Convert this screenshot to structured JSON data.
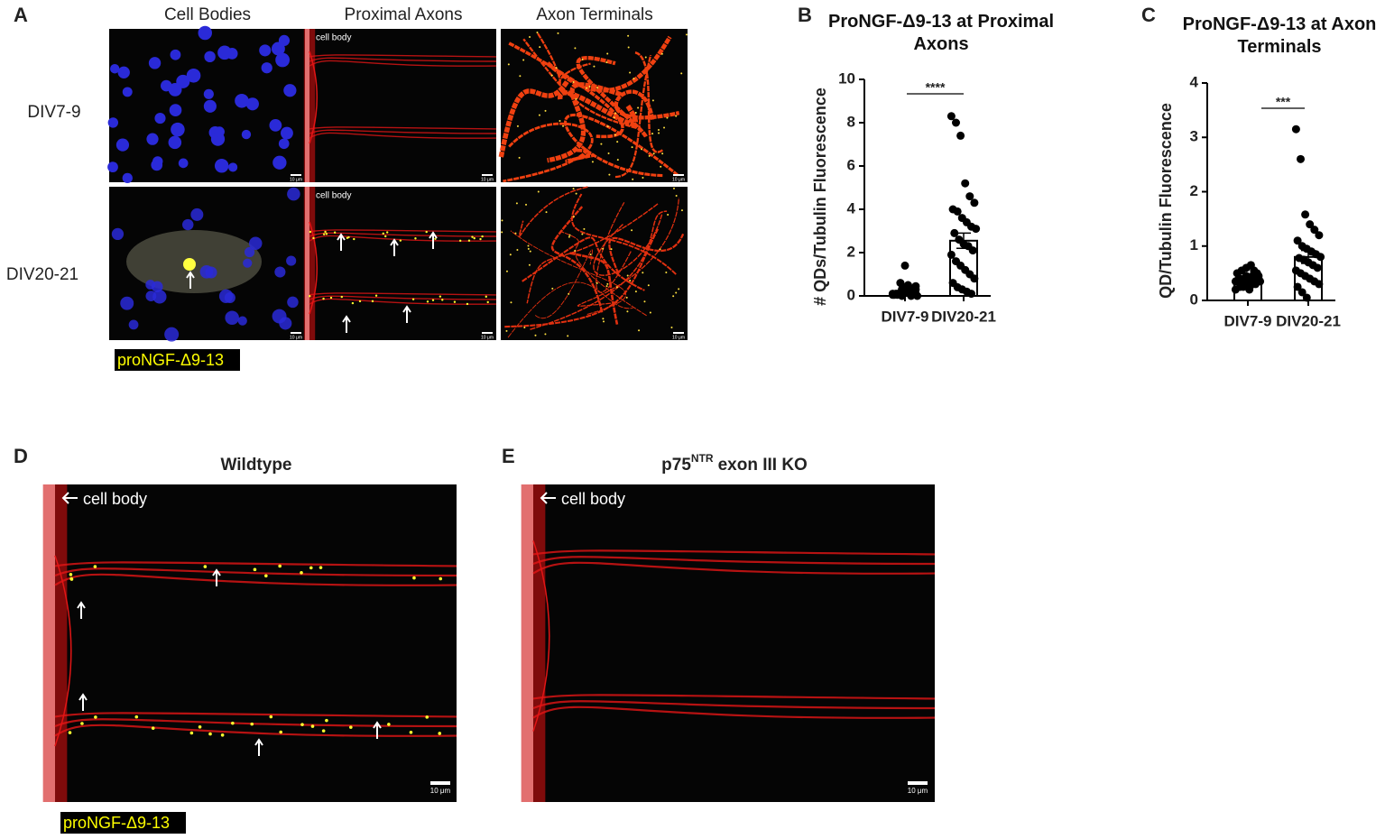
{
  "panels": {
    "A": "A",
    "B": "B",
    "C": "C",
    "D": "D",
    "E": "E"
  },
  "panel_a": {
    "columns": [
      "Cell Bodies",
      "Proximal Axons",
      "Axon Terminals"
    ],
    "rows": [
      "DIV7-9",
      "DIV20-21"
    ],
    "cell_body": "cell body",
    "legend": "proNGF-Δ9-13"
  },
  "panel_d": {
    "title": "Wildtype",
    "cell_body": "cell body",
    "legend": "proNGF-Δ9-13"
  },
  "panel_e": {
    "title": {
      "main": "p75",
      "sup": "NTR",
      "rest": "exon III KO"
    },
    "cell_body": "cell body"
  },
  "scale_bar": "10 μm",
  "chart_data": [
    {
      "type": "bar",
      "title": "ProNGF-Δ9-13 at Proximal Axons",
      "ylabel": "# QDs/Tubulin Fluorescence",
      "categories": [
        "DIV7-9",
        "DIV20-21"
      ],
      "values": [
        0.15,
        2.55
      ],
      "errors": [
        0.07,
        0.35
      ],
      "points": [
        [
          0.05,
          0.1,
          0.0,
          0.2,
          0.15,
          0.3,
          0.05,
          0.1,
          0.4,
          0.5,
          0.25,
          0.0,
          0.1,
          0.6,
          1.4,
          0.2,
          0.35,
          0.1,
          0.05,
          0.3,
          0.15,
          0.0,
          0.45
        ],
        [
          8.3,
          8.0,
          7.4,
          5.2,
          4.6,
          4.3,
          4.0,
          3.9,
          3.6,
          3.4,
          3.2,
          3.1,
          2.9,
          2.6,
          2.4,
          2.3,
          2.1,
          1.9,
          1.6,
          1.4,
          1.2,
          1.0,
          0.8,
          0.6,
          0.4,
          0.3,
          0.2,
          0.1
        ]
      ],
      "significance": "****",
      "color": "#000000",
      "ylim": [
        0,
        10
      ],
      "yticks": [
        0,
        2,
        4,
        6,
        8,
        10
      ]
    },
    {
      "type": "bar",
      "title": "ProNGF-Δ9-13 at Axon Terminals",
      "ylabel": "QD/Tubulin Fluorescence",
      "categories": [
        "DIV7-9",
        "DIV20-21"
      ],
      "values": [
        0.35,
        0.8
      ],
      "errors": [
        0.03,
        0.12
      ],
      "points": [
        [
          0.2,
          0.25,
          0.3,
          0.35,
          0.4,
          0.45,
          0.5,
          0.55,
          0.6,
          0.65,
          0.3,
          0.35,
          0.4,
          0.25,
          0.3,
          0.45,
          0.5,
          0.35,
          0.4,
          0.3,
          0.2,
          0.55,
          0.4,
          0.35,
          0.3,
          0.45,
          0.28,
          0.38
        ],
        [
          3.15,
          2.6,
          1.58,
          1.4,
          1.3,
          1.2,
          1.1,
          1.0,
          0.95,
          0.9,
          0.85,
          0.8,
          0.78,
          0.75,
          0.7,
          0.65,
          0.6,
          0.55,
          0.5,
          0.45,
          0.4,
          0.35,
          0.3,
          0.25,
          0.15,
          0.05
        ]
      ],
      "significance": "***",
      "color": "#000000",
      "ylim": [
        0,
        4
      ],
      "yticks": [
        0,
        1,
        2,
        3,
        4
      ]
    }
  ]
}
